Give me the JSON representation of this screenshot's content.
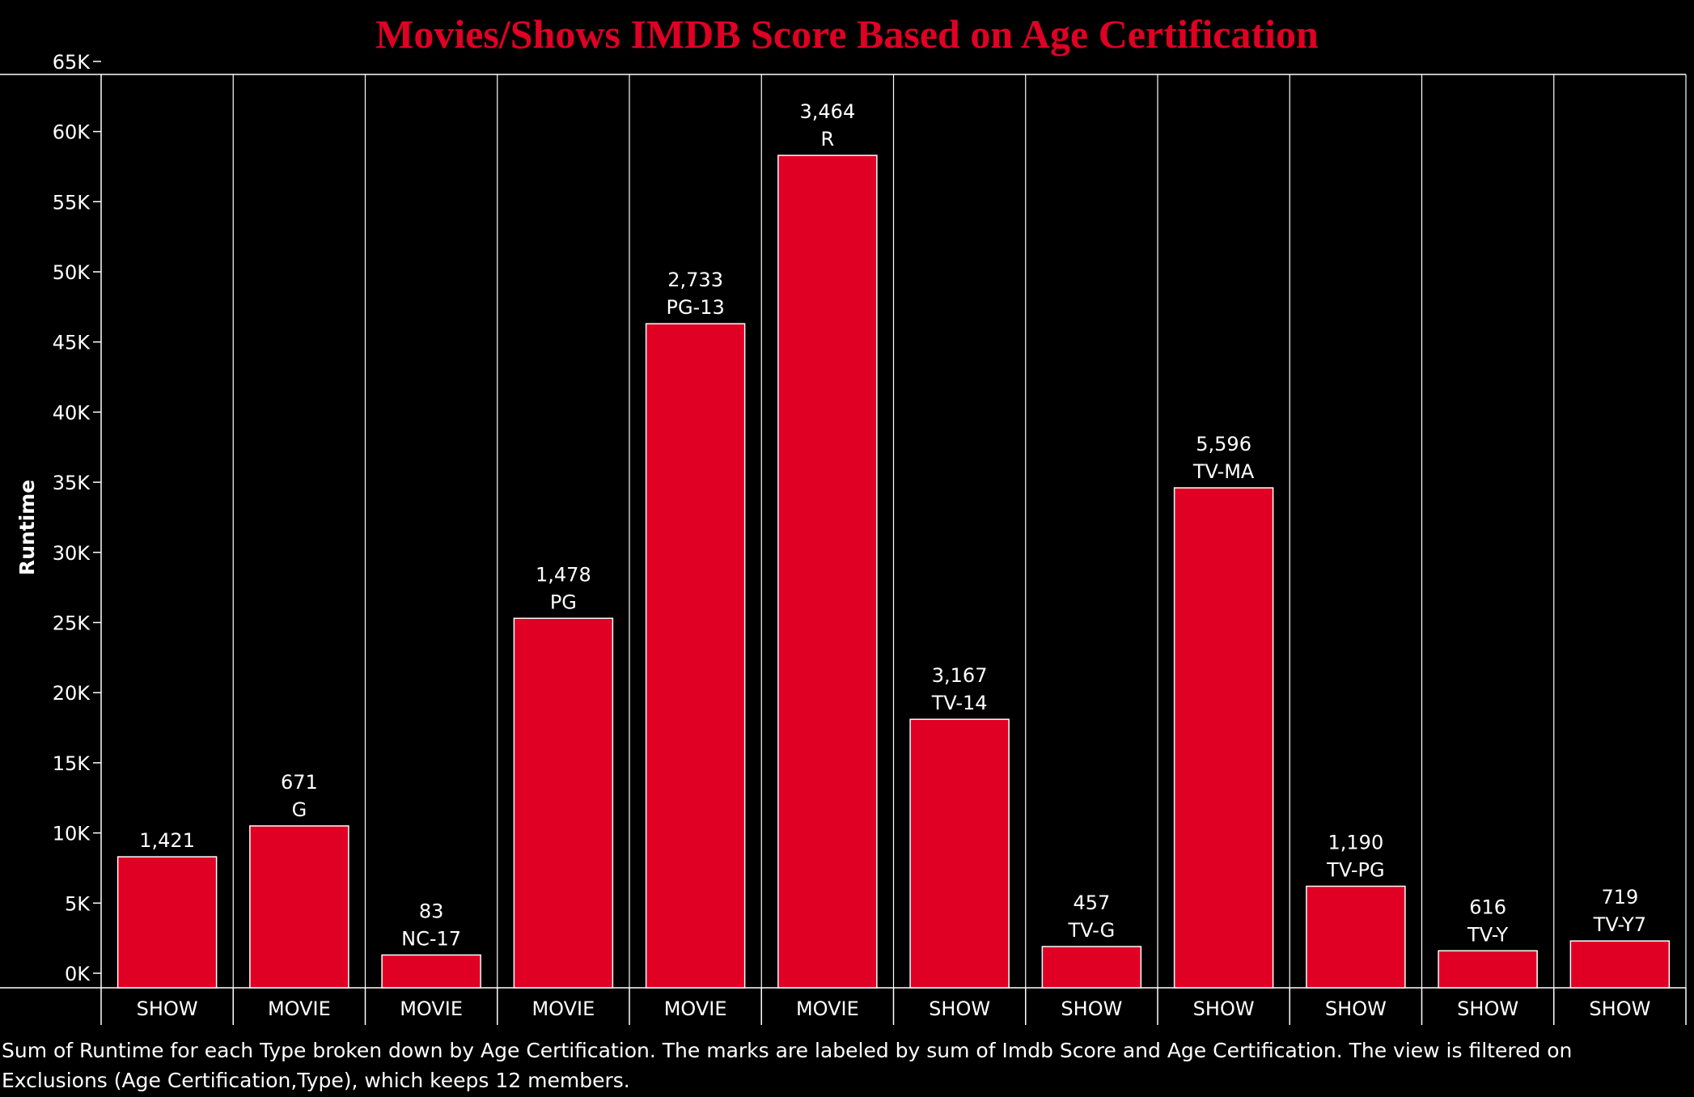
{
  "chart_data": {
    "type": "bar",
    "title": "Movies/Shows IMDB Score Based on Age Certification",
    "ylabel": "Runtime",
    "xlabel": "",
    "ylim": [
      0,
      65000
    ],
    "yticks": [
      {
        "value": 0,
        "label": "0K"
      },
      {
        "value": 5000,
        "label": "5K"
      },
      {
        "value": 10000,
        "label": "10K"
      },
      {
        "value": 15000,
        "label": "15K"
      },
      {
        "value": 20000,
        "label": "20K"
      },
      {
        "value": 25000,
        "label": "25K"
      },
      {
        "value": 30000,
        "label": "30K"
      },
      {
        "value": 35000,
        "label": "35K"
      },
      {
        "value": 40000,
        "label": "40K"
      },
      {
        "value": 45000,
        "label": "45K"
      },
      {
        "value": 50000,
        "label": "50K"
      },
      {
        "value": 55000,
        "label": "55K"
      },
      {
        "value": 60000,
        "label": "60K"
      },
      {
        "value": 65000,
        "label": "65K"
      }
    ],
    "categories": [
      "SHOW",
      "MOVIE",
      "MOVIE",
      "MOVIE",
      "MOVIE",
      "MOVIE",
      "SHOW",
      "SHOW",
      "SHOW",
      "SHOW",
      "SHOW",
      "SHOW"
    ],
    "certifications": [
      "",
      "G",
      "NC-17",
      "PG",
      "PG-13",
      "R",
      "TV-14",
      "TV-G",
      "TV-MA",
      "TV-PG",
      "TV-Y",
      "TV-Y7"
    ],
    "imdb_score_labels": [
      "1,421",
      "671",
      "83",
      "1,478",
      "2,733",
      "3,464",
      "3,167",
      "457",
      "5,596",
      "1,190",
      "616",
      "719"
    ],
    "values": [
      8300,
      10500,
      1300,
      25300,
      46300,
      58300,
      18100,
      1900,
      34600,
      6200,
      1600,
      2300
    ],
    "grid": false,
    "legend": "none"
  },
  "colors": {
    "background": "#000000",
    "bar_fill": "#e00024",
    "bar_stroke": "#ffffff",
    "title": "#e00024",
    "text": "#ffffff"
  },
  "caption": "Sum of Runtime for each Type broken down by Age Certification.  The marks are labeled by sum of Imdb Score and Age Certification. The view is filtered on Exclusions (Age Certification,Type), which keeps 12 members."
}
